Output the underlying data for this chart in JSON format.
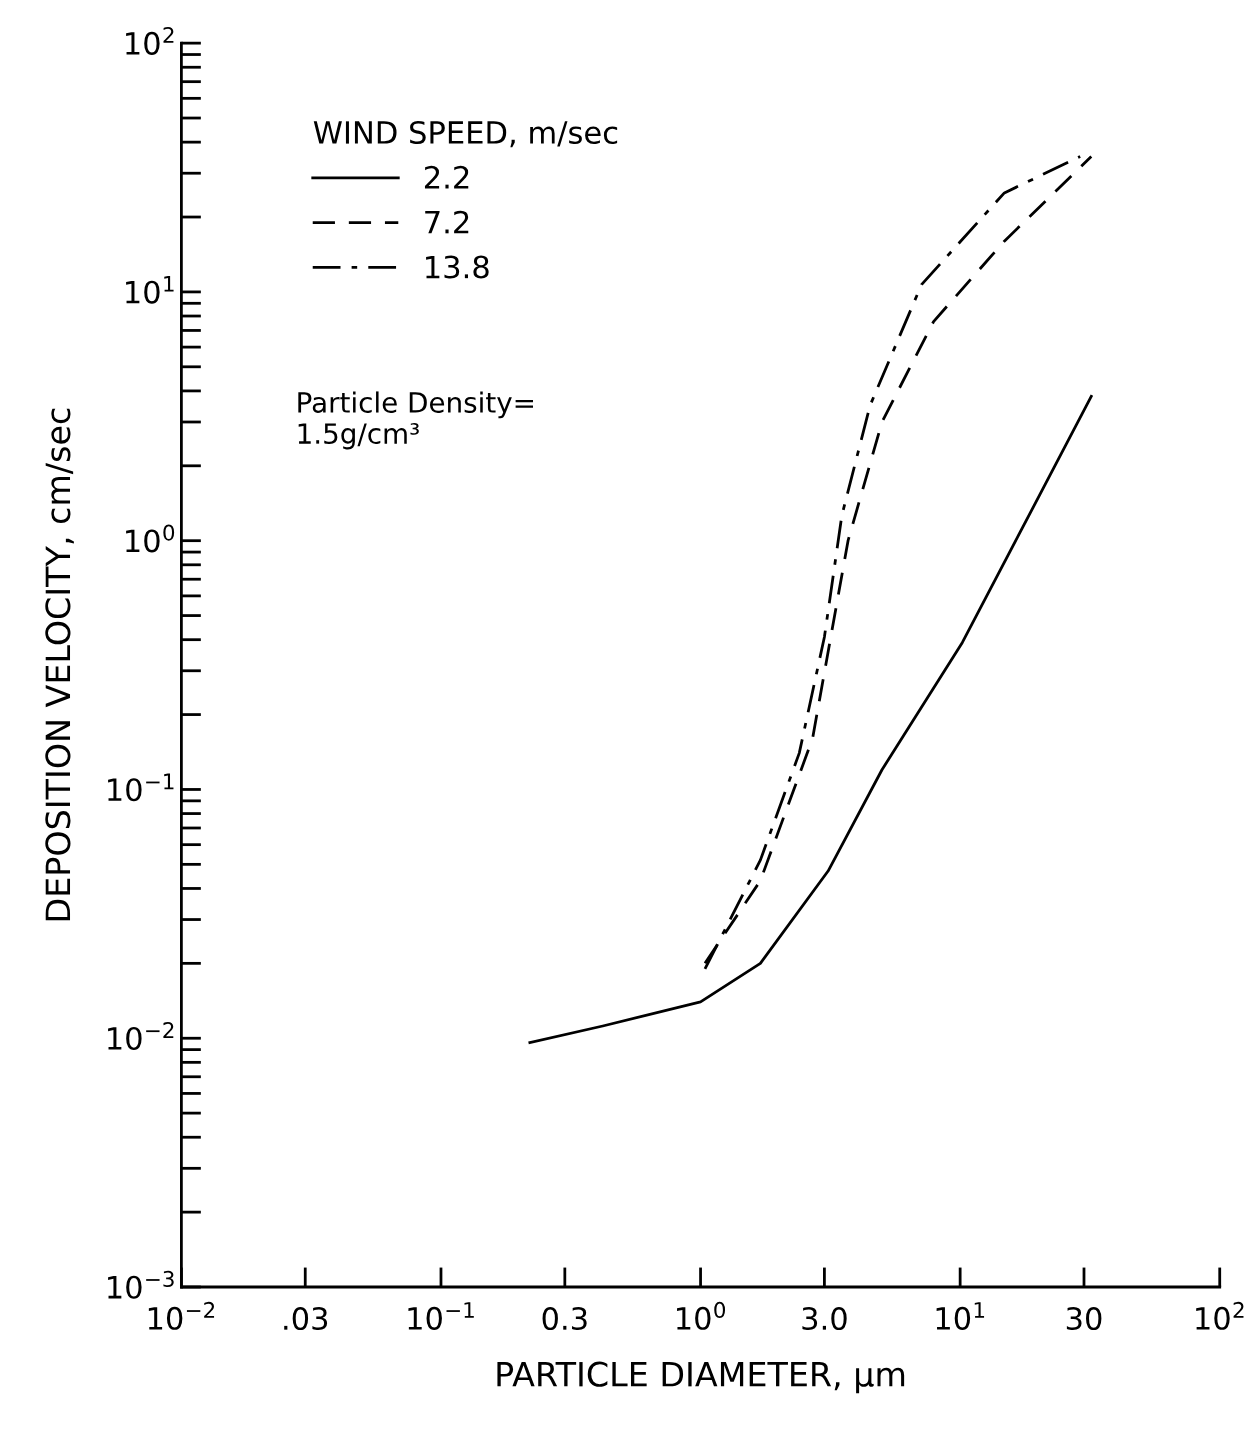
{
  "chart_data": {
    "type": "line",
    "xlabel": "PARTICLE DIAMETER, μm",
    "ylabel": "DEPOSITION VELOCITY, cm/sec",
    "legend_title": "WIND SPEED, m/sec",
    "legend": "top left",
    "log": "xy",
    "grid": false,
    "xlim": [
      0.01,
      100
    ],
    "ylim": [
      0.001,
      100
    ],
    "xticks": [
      {
        "value": 0.01,
        "label": "10$^{−2}$"
      },
      {
        "value": 0.03,
        "label": ".03"
      },
      {
        "value": 0.1,
        "label": "10$^{−1}$"
      },
      {
        "value": 0.3,
        "label": "0.3"
      },
      {
        "value": 1,
        "label": "10$^{0}$"
      },
      {
        "value": 3,
        "label": "3.0"
      },
      {
        "value": 10,
        "label": "10$^{1}$"
      },
      {
        "value": 30,
        "label": "30"
      },
      {
        "value": 100,
        "label": "10$^{2}$"
      }
    ],
    "yticks": [
      {
        "value": 0.001,
        "label": "10$^{−3}$"
      },
      {
        "value": 0.01,
        "label": "10$^{−2}$"
      },
      {
        "value": 0.1,
        "label": "10$^{−1}$"
      },
      {
        "value": 1,
        "label": "10$^{0}$"
      },
      {
        "value": 10,
        "label": "10$^{1}$"
      },
      {
        "value": 100,
        "label": "10$^{2}$"
      }
    ],
    "annotations": [
      "Particle Density=\n1.5g/cm³"
    ],
    "series": [
      {
        "name": "2.2",
        "color": "#000000",
        "line_style": "solid",
        "x": [
          0.22,
          0.42,
          1.0,
          1.7,
          3.1,
          5.0,
          10.2,
          32
        ],
        "values": [
          0.0096,
          0.0112,
          0.014,
          0.02,
          0.047,
          0.12,
          0.39,
          3.8
        ]
      },
      {
        "name": "7.2",
        "color": "#000000",
        "line_style": "dashed",
        "x": [
          1.04,
          1.7,
          2.7,
          3.7,
          5.0,
          7.9,
          14.8,
          32
        ],
        "values": [
          0.02,
          0.043,
          0.16,
          1.0,
          3.0,
          7.6,
          16,
          35
        ]
      },
      {
        "name": "13.8",
        "color": "#000000",
        "line_style": "dashdot",
        "x": [
          1.04,
          1.7,
          2.4,
          3.0,
          3.5,
          4.5,
          7.1,
          14.8,
          29
        ],
        "values": [
          0.019,
          0.052,
          0.14,
          0.41,
          1.26,
          3.5,
          10.7,
          25,
          35
        ]
      }
    ]
  }
}
